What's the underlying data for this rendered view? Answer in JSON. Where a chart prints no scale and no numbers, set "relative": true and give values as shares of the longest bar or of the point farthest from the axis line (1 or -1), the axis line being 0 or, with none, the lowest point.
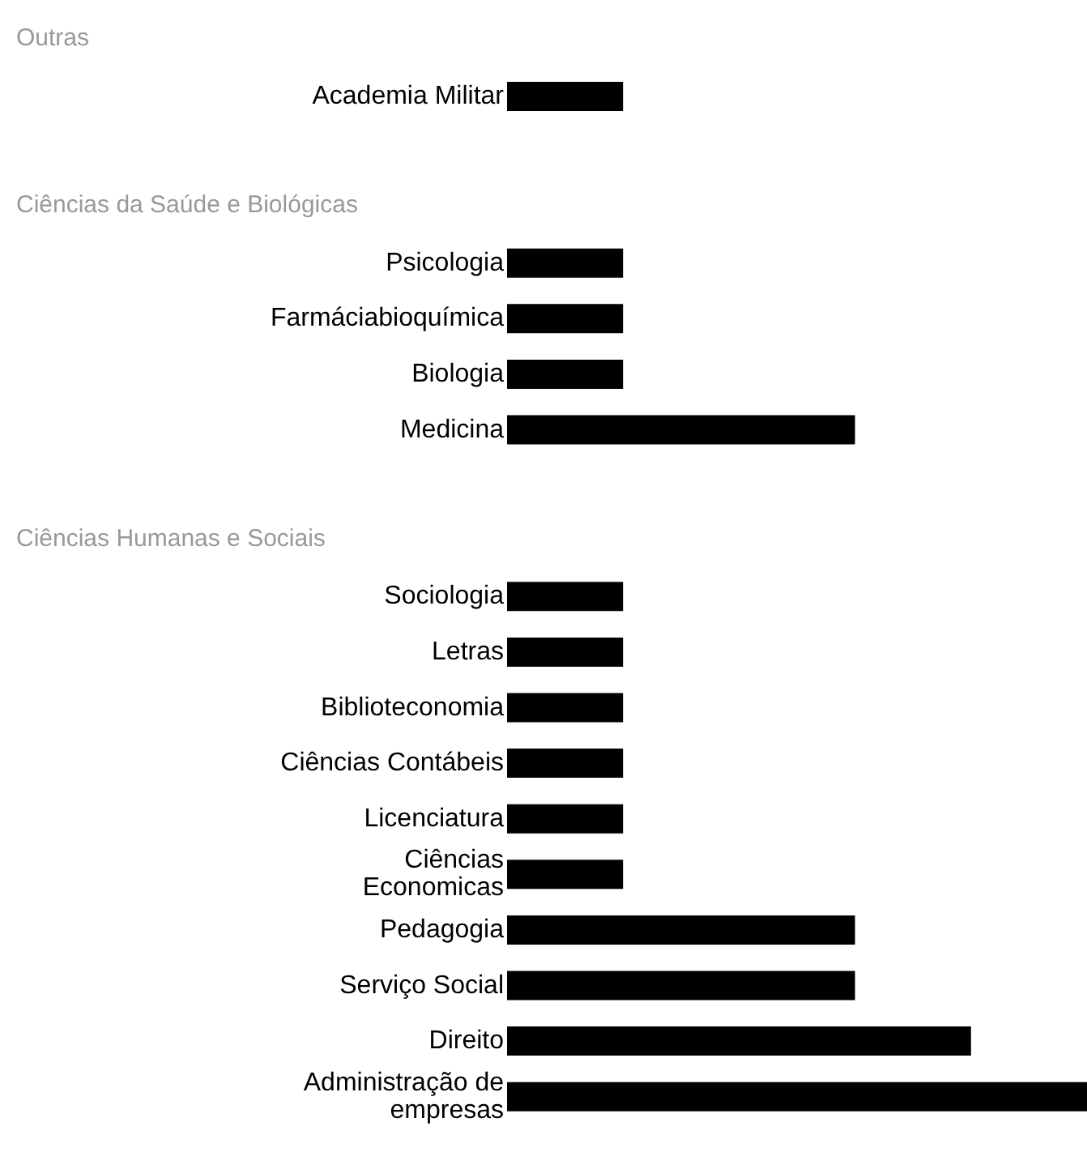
{
  "chart_data": {
    "type": "bar",
    "orientation": "horizontal",
    "relative": true,
    "categories": [
      null,
      "Academia Militar",
      null,
      null,
      "Psicologia",
      "Farmáciabioquímica",
      "Biologia",
      "Medicina",
      null,
      null,
      "Sociologia",
      "Letras",
      "Biblioteconomia",
      "Ciências Contábeis",
      "Licenciatura",
      "Ciências\nEconomicas",
      "Pedagogia",
      "Serviço Social",
      "Direito",
      "Administração de\nempresas"
    ],
    "values": [
      null,
      0.2,
      null,
      null,
      0.2,
      0.2,
      0.2,
      0.6,
      null,
      null,
      0.2,
      0.2,
      0.2,
      0.2,
      0.2,
      0.2,
      0.6,
      0.6,
      0.8,
      1
    ],
    "color": "#000000",
    "annotations": [
      "Outras",
      "Ciências da Saúde e Biológicas",
      "Ciências Humanas e Sociais"
    ]
  }
}
